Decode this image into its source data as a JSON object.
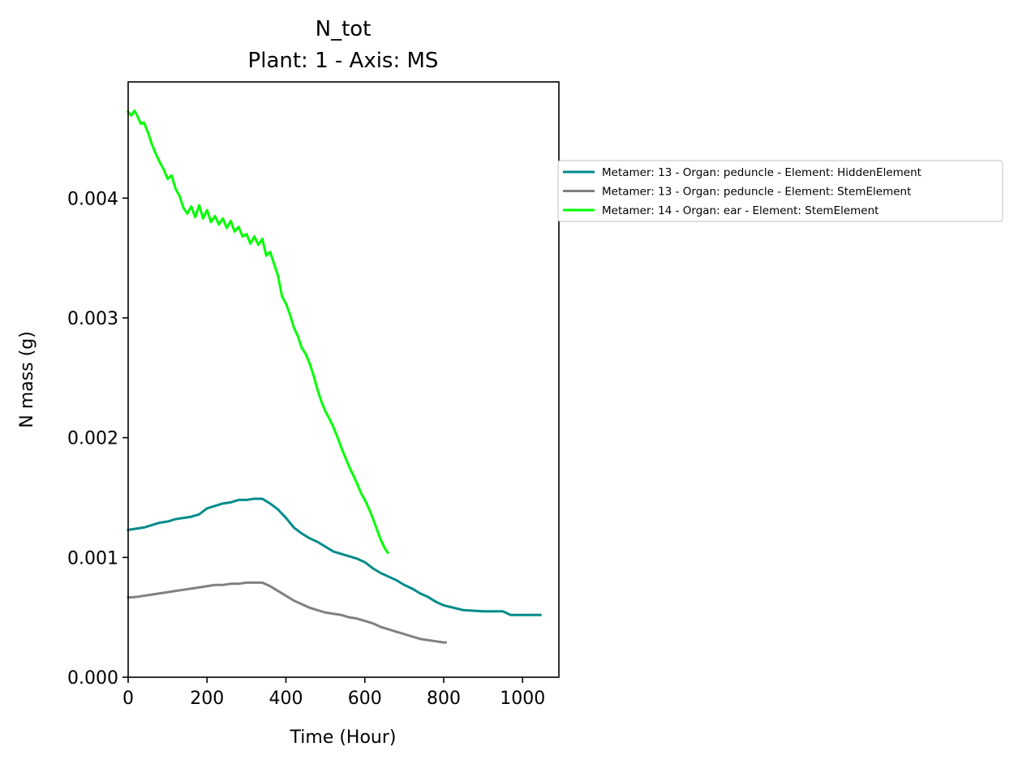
{
  "chart_data": {
    "type": "line",
    "title": "N_tot",
    "subtitle": "Plant: 1 - Axis: MS",
    "xlabel": "Time (Hour)",
    "ylabel": "N mass (g)",
    "xlim": [
      0,
      1092
    ],
    "ylim": [
      0,
      0.00497
    ],
    "xticks": [
      0,
      200,
      400,
      600,
      800,
      1000
    ],
    "xtick_labels": [
      "0",
      "200",
      "400",
      "600",
      "800",
      "1000"
    ],
    "yticks": [
      0,
      0.001,
      0.002,
      0.003,
      0.004
    ],
    "ytick_labels": [
      "0.000",
      "0.001",
      "0.002",
      "0.003",
      "0.004"
    ],
    "grid": false,
    "legend_placement": "outside-right",
    "series": [
      {
        "name": "Metamer: 13 - Organ: peduncle - Element: HiddenElement",
        "color": "#008b8b",
        "x": [
          0,
          20,
          40,
          60,
          80,
          100,
          120,
          140,
          160,
          180,
          200,
          220,
          240,
          260,
          280,
          300,
          320,
          340,
          360,
          380,
          400,
          420,
          440,
          460,
          480,
          500,
          520,
          540,
          560,
          580,
          600,
          620,
          640,
          660,
          680,
          700,
          720,
          740,
          760,
          780,
          800,
          850,
          900,
          950,
          970,
          1000,
          1045
        ],
        "y": [
          0.00123,
          0.00124,
          0.00125,
          0.00127,
          0.00129,
          0.0013,
          0.00132,
          0.00133,
          0.00134,
          0.00136,
          0.00141,
          0.00143,
          0.00145,
          0.00146,
          0.00148,
          0.00148,
          0.00149,
          0.00149,
          0.00145,
          0.0014,
          0.00133,
          0.00125,
          0.0012,
          0.00116,
          0.00113,
          0.00109,
          0.00105,
          0.00103,
          0.00101,
          0.00099,
          0.00096,
          0.00091,
          0.00087,
          0.00084,
          0.00081,
          0.00077,
          0.00074,
          0.0007,
          0.00067,
          0.00063,
          0.0006,
          0.00056,
          0.00055,
          0.00055,
          0.00052,
          0.00052,
          0.00052
        ]
      },
      {
        "name": "Metamer: 13 - Organ: peduncle - Element: StemElement",
        "color": "#808080",
        "x": [
          0,
          20,
          40,
          60,
          80,
          100,
          120,
          140,
          160,
          180,
          200,
          220,
          240,
          260,
          280,
          300,
          320,
          340,
          360,
          380,
          400,
          420,
          440,
          460,
          480,
          500,
          520,
          540,
          560,
          580,
          600,
          620,
          640,
          660,
          680,
          700,
          720,
          740,
          760,
          780,
          800,
          805
        ],
        "y": [
          0.000665,
          0.00067,
          0.00068,
          0.00069,
          0.0007,
          0.00071,
          0.00072,
          0.00073,
          0.00074,
          0.00075,
          0.00076,
          0.00077,
          0.00077,
          0.00078,
          0.00078,
          0.00079,
          0.00079,
          0.00079,
          0.00076,
          0.00072,
          0.00068,
          0.00064,
          0.00061,
          0.00058,
          0.00056,
          0.00054,
          0.00053,
          0.00052,
          0.0005,
          0.00049,
          0.00047,
          0.00045,
          0.00042,
          0.0004,
          0.00038,
          0.00036,
          0.00034,
          0.00032,
          0.00031,
          0.0003,
          0.00029,
          0.00029
        ]
      },
      {
        "name": "Metamer: 14 - Organ: ear - Element: StemElement",
        "color": "#00ff00",
        "x": [
          0,
          8,
          16,
          24,
          32,
          40,
          50,
          60,
          70,
          80,
          90,
          100,
          110,
          120,
          130,
          140,
          150,
          160,
          170,
          180,
          190,
          200,
          210,
          220,
          230,
          240,
          250,
          260,
          270,
          280,
          290,
          300,
          310,
          320,
          330,
          340,
          350,
          360,
          370,
          380,
          390,
          400,
          410,
          420,
          430,
          440,
          450,
          460,
          470,
          480,
          490,
          500,
          510,
          520,
          530,
          540,
          550,
          560,
          570,
          580,
          590,
          600,
          610,
          620,
          630,
          640,
          650,
          658
        ],
        "y": [
          0.00472,
          0.00469,
          0.00473,
          0.00468,
          0.00462,
          0.00463,
          0.00455,
          0.00445,
          0.00437,
          0.0043,
          0.00424,
          0.00416,
          0.00419,
          0.00408,
          0.00402,
          0.00392,
          0.00387,
          0.00393,
          0.00384,
          0.00394,
          0.00383,
          0.0039,
          0.0038,
          0.00385,
          0.00378,
          0.00383,
          0.00375,
          0.00381,
          0.00372,
          0.00376,
          0.00368,
          0.0037,
          0.00362,
          0.00368,
          0.00361,
          0.00366,
          0.00352,
          0.00355,
          0.00345,
          0.00335,
          0.00318,
          0.00312,
          0.00303,
          0.00292,
          0.00285,
          0.00275,
          0.0027,
          0.00262,
          0.00252,
          0.0024,
          0.0023,
          0.00222,
          0.00216,
          0.00209,
          0.00201,
          0.00192,
          0.00184,
          0.00176,
          0.00169,
          0.00162,
          0.00154,
          0.00148,
          0.00141,
          0.00133,
          0.00124,
          0.00115,
          0.00108,
          0.00104
        ]
      }
    ]
  }
}
